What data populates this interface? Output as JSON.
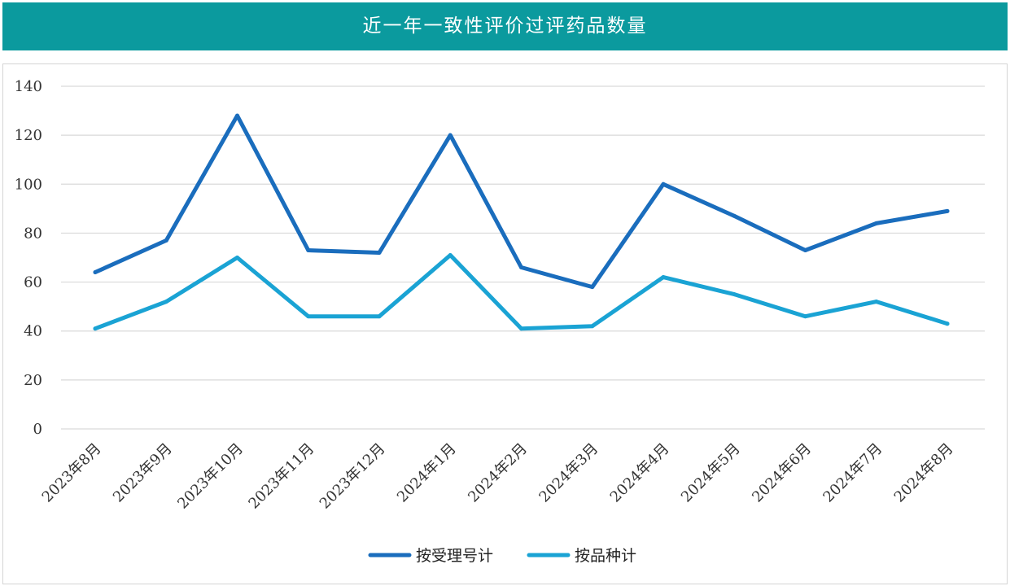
{
  "title": "近一年一致性评价过评药品数量",
  "chart_data": {
    "type": "line",
    "title": "近一年一致性评价过评药品数量",
    "categories": [
      "2023年8月",
      "2023年9月",
      "2023年10月",
      "2023年11月",
      "2023年12月",
      "2024年1月",
      "2024年2月",
      "2024年3月",
      "2024年4月",
      "2024年5月",
      "2024年6月",
      "2024年7月",
      "2024年8月"
    ],
    "series": [
      {
        "name": "按受理号计",
        "color": "#1a6dbd",
        "values": [
          64,
          77,
          128,
          73,
          72,
          120,
          66,
          58,
          100,
          87,
          73,
          84,
          89
        ]
      },
      {
        "name": "按品种计",
        "color": "#1aa3d4",
        "values": [
          41,
          52,
          70,
          46,
          46,
          71,
          41,
          42,
          62,
          55,
          46,
          52,
          43
        ]
      }
    ],
    "yticks": [
      "0",
      "20",
      "40",
      "60",
      "80",
      "100",
      "120",
      "140"
    ],
    "ylim": [
      0,
      140
    ],
    "grid": true,
    "legend_position": "bottom-center"
  }
}
